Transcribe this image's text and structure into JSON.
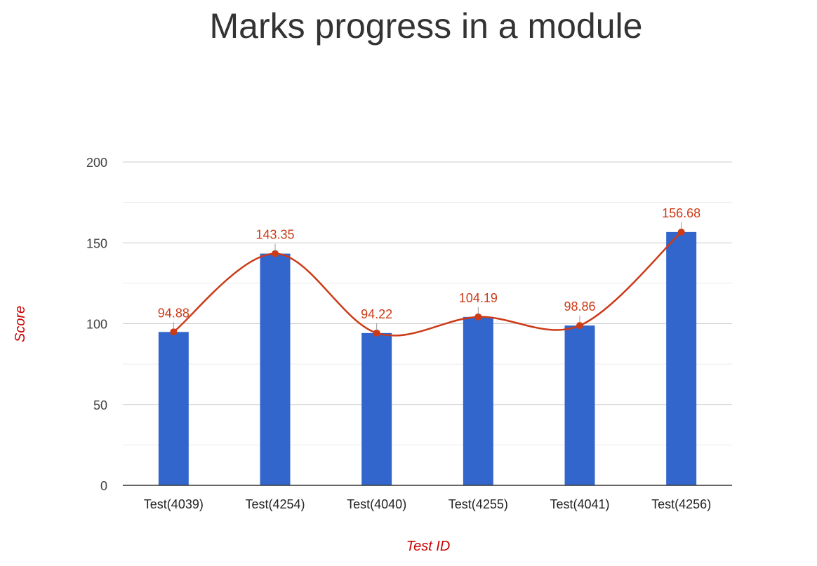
{
  "chart_data": {
    "type": "bar",
    "title": "Marks progress in a module",
    "xlabel": "Test ID",
    "ylabel": "Score",
    "categories": [
      "Test(4039)",
      "Test(4254)",
      "Test(4040)",
      "Test(4255)",
      "Test(4041)",
      "Test(4256)"
    ],
    "series": [
      {
        "type": "bar",
        "values": [
          94.88,
          143.35,
          94.22,
          104.19,
          98.86,
          156.68
        ],
        "color": "#3366cc"
      },
      {
        "type": "line",
        "smooth": true,
        "values": [
          94.88,
          143.35,
          94.22,
          104.19,
          98.86,
          156.68
        ],
        "data_labels": [
          "94.88",
          "143.35",
          "94.22",
          "104.19",
          "98.86",
          "156.68"
        ],
        "color": "#cc3b17"
      }
    ],
    "ylim": [
      0,
      200
    ],
    "yticks": [
      0,
      50,
      100,
      150,
      200
    ],
    "ytick_labels": [
      "0",
      "50",
      "100",
      "150",
      "200"
    ],
    "grid": true,
    "minor_grid": true
  }
}
